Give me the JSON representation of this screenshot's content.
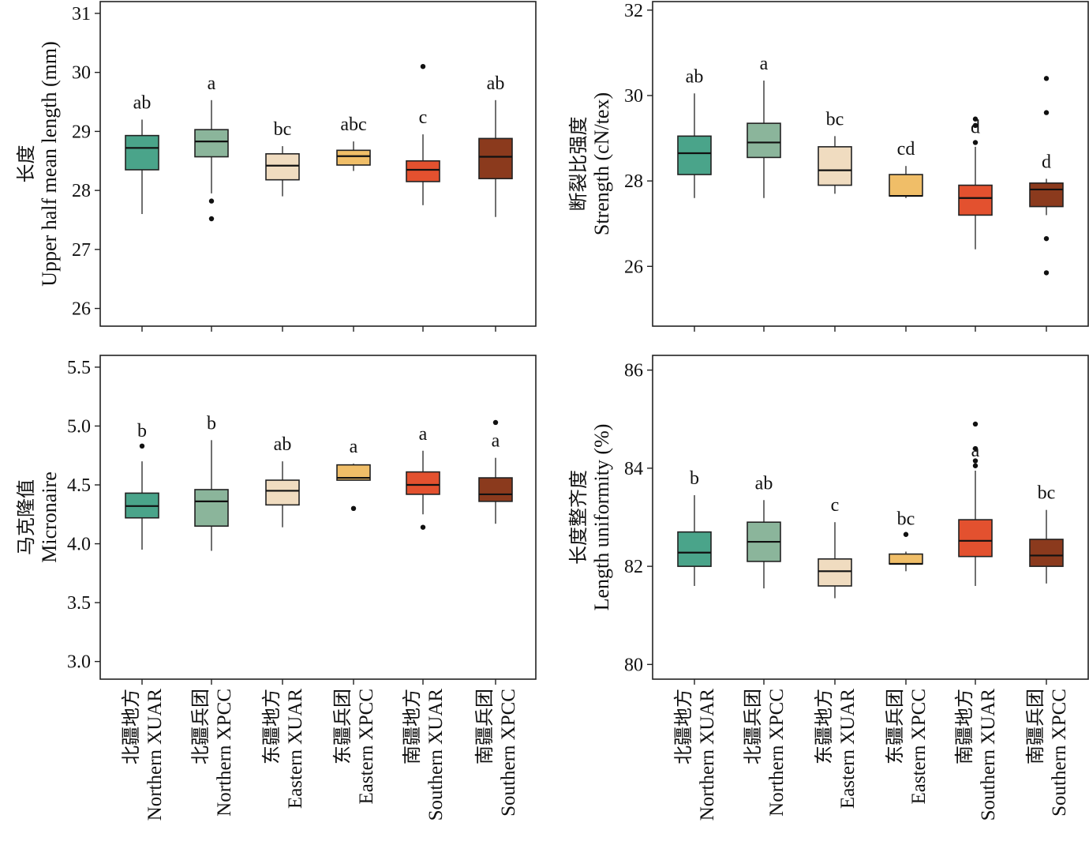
{
  "colors": [
    "#4aa48a",
    "#8bb59b",
    "#f0dcc0",
    "#f0be68",
    "#e3512f",
    "#8b3a1d"
  ],
  "categories": [
    {
      "cn": "北疆地方",
      "en": "Northern XUAR"
    },
    {
      "cn": "北疆兵团",
      "en": "Northern XPCC"
    },
    {
      "cn": "东疆地方",
      "en": "Eastern XUAR"
    },
    {
      "cn": "东疆兵团",
      "en": "Eastern XPCC"
    },
    {
      "cn": "南疆地方",
      "en": "Southern XUAR"
    },
    {
      "cn": "南疆兵团",
      "en": "Southern XPCC"
    }
  ],
  "chart_data": [
    {
      "type": "box",
      "ylabel_cn": "长度",
      "ylabel_en": "Upper half mean length (mm)",
      "ylim": [
        25.7,
        31.2
      ],
      "yticks": [
        26,
        27,
        28,
        29,
        30,
        31
      ],
      "tick_decimals": 0,
      "boxes": [
        {
          "min": 27.6,
          "q1": 28.35,
          "median": 28.72,
          "q3": 28.93,
          "max": 29.2,
          "outliers": [],
          "letter": "ab"
        },
        {
          "min": 27.95,
          "q1": 28.57,
          "median": 28.83,
          "q3": 29.03,
          "max": 29.53,
          "outliers": [
            27.82,
            27.52
          ],
          "letter": "a"
        },
        {
          "min": 27.9,
          "q1": 28.18,
          "median": 28.42,
          "q3": 28.62,
          "max": 28.75,
          "outliers": [],
          "letter": "bc"
        },
        {
          "min": 28.33,
          "q1": 28.43,
          "median": 28.58,
          "q3": 28.68,
          "max": 28.83,
          "outliers": [],
          "letter": "abc"
        },
        {
          "min": 27.75,
          "q1": 28.15,
          "median": 28.35,
          "q3": 28.5,
          "max": 28.95,
          "outliers": [
            30.1
          ],
          "letter": "c"
        },
        {
          "min": 27.55,
          "q1": 28.2,
          "median": 28.57,
          "q3": 28.88,
          "max": 29.53,
          "outliers": [],
          "letter": "ab"
        }
      ]
    },
    {
      "type": "box",
      "ylabel_cn": "断裂比强度",
      "ylabel_en": "Strength (cN/tex)",
      "ylim": [
        24.6,
        32.2
      ],
      "yticks": [
        26,
        28,
        30,
        32
      ],
      "tick_decimals": 0,
      "boxes": [
        {
          "min": 27.6,
          "q1": 28.15,
          "median": 28.65,
          "q3": 29.05,
          "max": 30.05,
          "outliers": [],
          "letter": "ab"
        },
        {
          "min": 27.6,
          "q1": 28.55,
          "median": 28.9,
          "q3": 29.35,
          "max": 30.35,
          "outliers": [],
          "letter": "a"
        },
        {
          "min": 27.7,
          "q1": 27.9,
          "median": 28.25,
          "q3": 28.8,
          "max": 29.05,
          "outliers": [],
          "letter": "bc"
        },
        {
          "min": 27.6,
          "q1": 27.65,
          "median": 27.65,
          "q3": 28.15,
          "max": 28.35,
          "outliers": [],
          "letter": "cd"
        },
        {
          "min": 26.4,
          "q1": 27.2,
          "median": 27.6,
          "q3": 27.9,
          "max": 28.8,
          "outliers": [
            28.9,
            29.3,
            29.45
          ],
          "letter": "d"
        },
        {
          "min": 27.2,
          "q1": 27.4,
          "median": 27.8,
          "q3": 27.95,
          "max": 28.05,
          "outliers": [
            30.4,
            29.6,
            26.65,
            25.85
          ],
          "letter": "d"
        }
      ]
    },
    {
      "type": "box",
      "ylabel_cn": "马克隆值",
      "ylabel_en": "Micronaire",
      "ylim": [
        2.85,
        5.6
      ],
      "yticks": [
        3.0,
        3.5,
        4.0,
        4.5,
        5.0,
        5.5
      ],
      "tick_decimals": 1,
      "boxes": [
        {
          "min": 3.95,
          "q1": 4.22,
          "median": 4.32,
          "q3": 4.43,
          "max": 4.7,
          "outliers": [
            4.83
          ],
          "letter": "b"
        },
        {
          "min": 3.94,
          "q1": 4.15,
          "median": 4.36,
          "q3": 4.46,
          "max": 4.88,
          "outliers": [],
          "letter": "b"
        },
        {
          "min": 4.14,
          "q1": 4.33,
          "median": 4.45,
          "q3": 4.54,
          "max": 4.7,
          "outliers": [],
          "letter": "ab"
        },
        {
          "min": 4.54,
          "q1": 4.54,
          "median": 4.56,
          "q3": 4.67,
          "max": 4.68,
          "outliers": [
            4.3
          ],
          "letter": "a"
        },
        {
          "min": 4.25,
          "q1": 4.42,
          "median": 4.5,
          "q3": 4.61,
          "max": 4.79,
          "outliers": [
            4.14
          ],
          "letter": "a"
        },
        {
          "min": 4.17,
          "q1": 4.36,
          "median": 4.42,
          "q3": 4.56,
          "max": 4.73,
          "outliers": [
            5.03
          ],
          "letter": "a"
        }
      ]
    },
    {
      "type": "box",
      "ylabel_cn": "长度整齐度",
      "ylabel_en": "Length uniformity (%)",
      "ylim": [
        79.7,
        86.3
      ],
      "yticks": [
        80,
        82,
        84,
        86
      ],
      "tick_decimals": 0,
      "boxes": [
        {
          "min": 81.6,
          "q1": 82.0,
          "median": 82.28,
          "q3": 82.7,
          "max": 83.45,
          "outliers": [],
          "letter": "b"
        },
        {
          "min": 81.55,
          "q1": 82.1,
          "median": 82.5,
          "q3": 82.9,
          "max": 83.35,
          "outliers": [],
          "letter": "ab"
        },
        {
          "min": 81.35,
          "q1": 81.6,
          "median": 81.9,
          "q3": 82.15,
          "max": 82.9,
          "outliers": [],
          "letter": "c"
        },
        {
          "min": 81.9,
          "q1": 82.05,
          "median": 82.05,
          "q3": 82.25,
          "max": 82.3,
          "outliers": [
            82.65
          ],
          "letter": "bc"
        },
        {
          "min": 81.6,
          "q1": 82.2,
          "median": 82.52,
          "q3": 82.95,
          "max": 83.95,
          "outliers": [
            84.05,
            84.15,
            84.4,
            84.9
          ],
          "letter": "a"
        },
        {
          "min": 81.65,
          "q1": 82.0,
          "median": 82.22,
          "q3": 82.55,
          "max": 83.15,
          "outliers": [],
          "letter": "bc"
        }
      ]
    }
  ]
}
